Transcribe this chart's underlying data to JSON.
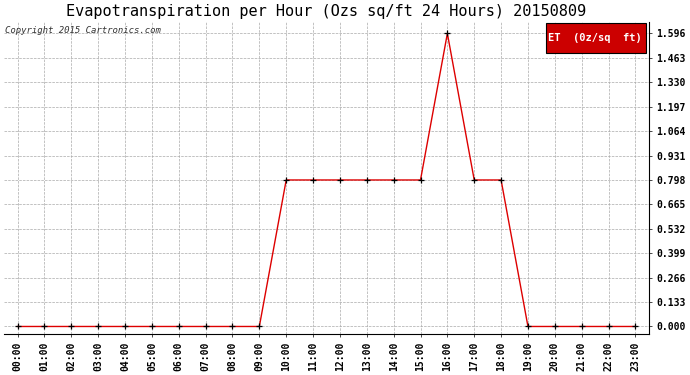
{
  "title": "Evapotranspiration per Hour (Ozs sq/ft 24 Hours) 20150809",
  "copyright": "Copyright 2015 Cartronics.com",
  "legend_label": "ET  (0z/sq  ft)",
  "hours": [
    "00:00",
    "01:00",
    "02:00",
    "03:00",
    "04:00",
    "05:00",
    "06:00",
    "07:00",
    "08:00",
    "09:00",
    "10:00",
    "11:00",
    "12:00",
    "13:00",
    "14:00",
    "15:00",
    "16:00",
    "17:00",
    "18:00",
    "19:00",
    "20:00",
    "21:00",
    "22:00",
    "23:00"
  ],
  "values": [
    0.0,
    0.0,
    0.0,
    0.0,
    0.0,
    0.0,
    0.0,
    0.0,
    0.0,
    0.0,
    0.798,
    0.798,
    0.798,
    0.798,
    0.798,
    0.798,
    1.596,
    0.798,
    0.798,
    0.0,
    0.0,
    0.0,
    0.0,
    0.0
  ],
  "line_color": "#dd0000",
  "marker_color": "#000000",
  "bg_color": "#ffffff",
  "plot_bg_color": "#ffffff",
  "grid_color": "#aaaaaa",
  "yticks": [
    0.0,
    0.133,
    0.266,
    0.399,
    0.532,
    0.665,
    0.798,
    0.931,
    1.064,
    1.197,
    1.33,
    1.463,
    1.596
  ],
  "ylim": [
    -0.04,
    1.66
  ],
  "title_fontsize": 11,
  "tick_fontsize": 7,
  "copyright_fontsize": 6.5,
  "legend_fontsize": 7.5
}
